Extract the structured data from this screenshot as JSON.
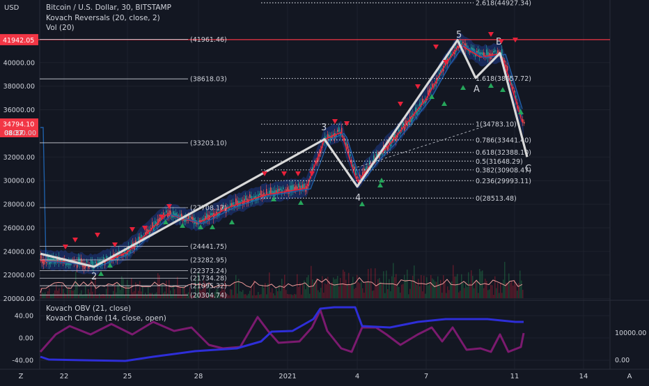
{
  "header": {
    "currency": "USD",
    "symbol_line": "Bitcoin / U.S. Dollar, 30, BITSTAMP",
    "indicator1": "Kovach Reversals (20, close, 2)",
    "indicator2": "Vol (20)"
  },
  "oscillator": {
    "title1": "Kovach OBV (21, close)",
    "title2": "Kovach Chande (14, close, open)"
  },
  "colors": {
    "background": "#131722",
    "grid": "#1e222d",
    "resistance": "#f23645",
    "wave": "#d9d9d9",
    "obv": "#2e2ed8",
    "chande": "#7b1a6f",
    "up_marker": "#26a65b",
    "down_marker": "#e8213a"
  },
  "price_axis": {
    "ticks": [
      "40000.00",
      "38000.00",
      "36000.00",
      "32000.00",
      "30000.00",
      "28000.00",
      "26000.00",
      "24000.00",
      "22000.00",
      "20000.00"
    ],
    "tick_values": [
      40000,
      38000,
      36000,
      32000,
      30000,
      28000,
      26000,
      24000,
      22000,
      20000
    ],
    "resistance_price": "41942.05",
    "current_price": "34794.10",
    "countdown": "08:37",
    "hidden_tick": "34000.00"
  },
  "osc_axis": {
    "left_ticks": [
      "40.00",
      "0.00",
      "-40.00"
    ],
    "right_ticks": [
      "10000.00",
      "0.00"
    ]
  },
  "time_axis": {
    "labels": [
      "22",
      "25",
      "28",
      "2021",
      "4",
      "7",
      "11",
      "14"
    ],
    "corner_left": "Z",
    "corner_right": "A"
  },
  "chart_data": {
    "type": "candlestick",
    "price_range": [
      20000,
      42400
    ],
    "resistance_level": 41942.05,
    "current_price": 34794.1,
    "horizontal_levels": [
      {
        "label": "(41961.46)",
        "value": 41961.46
      },
      {
        "label": "(38618.03)",
        "value": 38618.03
      },
      {
        "label": "(33203.10)",
        "value": 33203.1
      },
      {
        "label": "(27708.17)",
        "value": 27708.17
      },
      {
        "label": "(24441.75)",
        "value": 24441.75
      },
      {
        "label": "(23282.95)",
        "value": 23282.95
      },
      {
        "label": "(22373.24)",
        "value": 22373.24
      },
      {
        "label": "(21734.28)",
        "value": 21734.28
      },
      {
        "label": "(21095.32)",
        "value": 21095.32
      },
      {
        "label": "(20304.74)",
        "value": 20304.74
      }
    ],
    "fib_levels": [
      {
        "label": "2.618(44927.34)",
        "value": 44927.34
      },
      {
        "label": "1.618(38657.72)",
        "value": 38657.72
      },
      {
        "label": "1(34783.10)",
        "value": 34783.1
      },
      {
        "label": "0.786(33441.40)",
        "value": 33441.4
      },
      {
        "label": "0.618(32388.10)",
        "value": 32388.1
      },
      {
        "label": "0.5(31648.29)",
        "value": 31648.29
      },
      {
        "label": "0.382(30908.47)",
        "value": 30908.47
      },
      {
        "label": "0.236(29993.11)",
        "value": 29993.11
      },
      {
        "label": "0(28513.48)",
        "value": 28513.48
      }
    ],
    "wave_labels": [
      "2",
      "3",
      "4",
      "5",
      "A",
      "B",
      "C"
    ],
    "wave_path_prices": [
      23800,
      22700,
      33500,
      29500,
      41900,
      38700,
      40800,
      32000
    ],
    "osc_ticks": [
      40,
      0,
      -40
    ],
    "obv_ticks": [
      10000,
      0
    ]
  }
}
